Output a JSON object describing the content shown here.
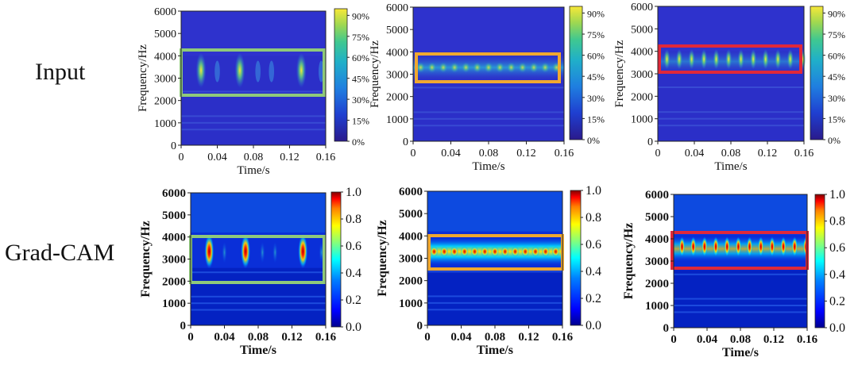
{
  "row_labels": {
    "input": "Input",
    "gradcam": "Grad-CAM"
  },
  "input_row": {
    "y_label": "Frequency/Hz",
    "x_label": "Time/s",
    "y_ticks": [
      "0",
      "1000",
      "2000",
      "3000",
      "4000",
      "5000",
      "6000"
    ],
    "x_ticks": [
      "0",
      "0.04",
      "0.08",
      "0.12",
      "0.16"
    ],
    "colorbar_ticks": [
      "0%",
      "15%",
      "30%",
      "45%",
      "60%",
      "75%",
      "90%"
    ]
  },
  "gradcam_row": {
    "y_label": "Frequency/Hz",
    "x_label": "Time/s",
    "y_ticks": [
      "0",
      "1000",
      "2000",
      "3000",
      "4000",
      "5000",
      "6000"
    ],
    "x_ticks": [
      "0",
      "0.04",
      "0.08",
      "0.12",
      "0.16"
    ],
    "colorbar_ticks": [
      "0.0",
      "0.2",
      "0.4",
      "0.6",
      "0.8",
      "1.0"
    ]
  },
  "highlight_colors": [
    "#8fc97a",
    "#f0a830",
    "#e0283a"
  ],
  "colormap": {
    "input": [
      "#2a1a8c",
      "#1f3fd0",
      "#1f7fe0",
      "#20b0c8",
      "#40c890",
      "#a0d850",
      "#f8e838"
    ],
    "jet": [
      "#00008f",
      "#0000ff",
      "#0080ff",
      "#00ffff",
      "#80ff80",
      "#ffff00",
      "#ff8000",
      "#ff0000",
      "#800000"
    ]
  }
}
